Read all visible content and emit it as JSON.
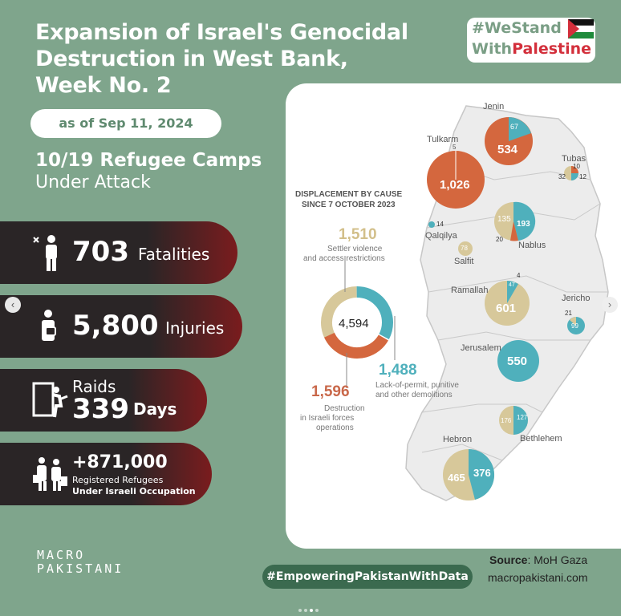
{
  "title": [
    "Expansion of Israel's Genocidal",
    "Destruction in West Bank,",
    "Week No. 2"
  ],
  "date": "as of Sep 11, 2024",
  "camps": {
    "line1": "10/19 Refugee Camps",
    "line2": "Under Attack"
  },
  "stats": {
    "fatalities": {
      "value": "703",
      "label": "Fatalities"
    },
    "injuries": {
      "value": "5,800",
      "label": "Injuries"
    },
    "raids": {
      "label": "Raids",
      "value": "339",
      "unit": "Days"
    },
    "refugees": {
      "value": "+871,000",
      "label1": "Registered Refugees",
      "label2": "Under Israeli Occupation"
    }
  },
  "badge": {
    "line1": "#WeStand",
    "line2a": "With",
    "line2b": "Palestine"
  },
  "map": {
    "donut_title": [
      "DISPLACEMENT BY CAUSE",
      "SINCE 7 OCTOBER 2023"
    ],
    "total": "4,594",
    "causes": [
      {
        "value": "1,510",
        "label1": "Settler violence",
        "label2": "and access restrictions",
        "color": "#d7c89a"
      },
      {
        "value": "1,488",
        "label1": "Lack-of-permit, punitive",
        "label2": "and other demolitions",
        "color": "#4fb0bc"
      },
      {
        "value": "1,596",
        "label1": "Destruction",
        "label2": "in Israeli forces",
        "label3": "operations",
        "color": "#d4673e"
      }
    ],
    "regions": [
      {
        "name": "Jenin",
        "labels": [
          "67",
          "534"
        ]
      },
      {
        "name": "Tulkarm",
        "labels": [
          "5",
          "1,026"
        ]
      },
      {
        "name": "Tubas",
        "labels": [
          "10",
          "32",
          "12"
        ]
      },
      {
        "name": "Qalqilya",
        "labels": [
          "14"
        ]
      },
      {
        "name": "Nablus",
        "labels": [
          "135",
          "193",
          "20"
        ]
      },
      {
        "name": "Salfit",
        "labels": [
          "78"
        ]
      },
      {
        "name": "Ramallah",
        "labels": [
          "4",
          "47",
          "601"
        ]
      },
      {
        "name": "Jericho",
        "labels": [
          "21",
          "99"
        ]
      },
      {
        "name": "Jerusalem",
        "labels": [
          "550"
        ]
      },
      {
        "name": "Bethlehem",
        "labels": [
          "176",
          "127"
        ]
      },
      {
        "name": "Hebron",
        "labels": [
          "465",
          "376"
        ]
      }
    ]
  },
  "footer": {
    "logo1": "MACRO",
    "logo2": "PAKISTANI",
    "hashtag": "#EmpoweringPakistanWithData",
    "source_label": "Source",
    "source_value": ": MoH Gaza",
    "site": "macropakistani.com"
  },
  "colors": {
    "background": "#7fa58c",
    "dark": "#2a2526",
    "red": "#7a1c1e",
    "teal": "#4fb0bc",
    "sand": "#d7c89a",
    "orange": "#d4673e"
  }
}
